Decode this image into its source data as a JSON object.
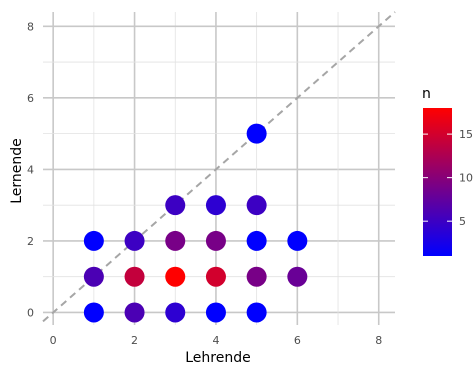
{
  "chart_data": {
    "type": "scatter",
    "xlabel": "Lehrende",
    "ylabel": "Lernende",
    "xlim": [
      -0.25,
      8.4
    ],
    "ylim": [
      -0.35,
      8.4
    ],
    "x_ticks": [
      "0",
      "2",
      "4",
      "6",
      "8"
    ],
    "y_ticks": [
      "0",
      "2",
      "4",
      "6",
      "8"
    ],
    "grid": true,
    "reference_line": {
      "type": "identity",
      "style": "dashed",
      "color": "#a6a6a6"
    },
    "legend": {
      "title": "n",
      "placement": "right",
      "range": [
        1,
        18
      ],
      "ticks": [
        "5",
        "10",
        "15"
      ],
      "color_low": "#0000ff",
      "color_high": "#ff0000"
    },
    "points": [
      {
        "x": 1,
        "y": 0,
        "n": 1
      },
      {
        "x": 2,
        "y": 0,
        "n": 6
      },
      {
        "x": 3,
        "y": 0,
        "n": 4
      },
      {
        "x": 4,
        "y": 0,
        "n": 1
      },
      {
        "x": 5,
        "y": 0,
        "n": 1
      },
      {
        "x": 1,
        "y": 1,
        "n": 6
      },
      {
        "x": 2,
        "y": 1,
        "n": 14
      },
      {
        "x": 3,
        "y": 1,
        "n": 18
      },
      {
        "x": 4,
        "y": 1,
        "n": 15
      },
      {
        "x": 5,
        "y": 1,
        "n": 9
      },
      {
        "x": 6,
        "y": 1,
        "n": 8
      },
      {
        "x": 1,
        "y": 2,
        "n": 1
      },
      {
        "x": 2,
        "y": 2,
        "n": 5
      },
      {
        "x": 3,
        "y": 2,
        "n": 9
      },
      {
        "x": 4,
        "y": 2,
        "n": 9
      },
      {
        "x": 5,
        "y": 2,
        "n": 1
      },
      {
        "x": 6,
        "y": 2,
        "n": 1
      },
      {
        "x": 3,
        "y": 3,
        "n": 5
      },
      {
        "x": 4,
        "y": 3,
        "n": 4
      },
      {
        "x": 5,
        "y": 3,
        "n": 5
      },
      {
        "x": 5,
        "y": 5,
        "n": 1
      }
    ]
  }
}
